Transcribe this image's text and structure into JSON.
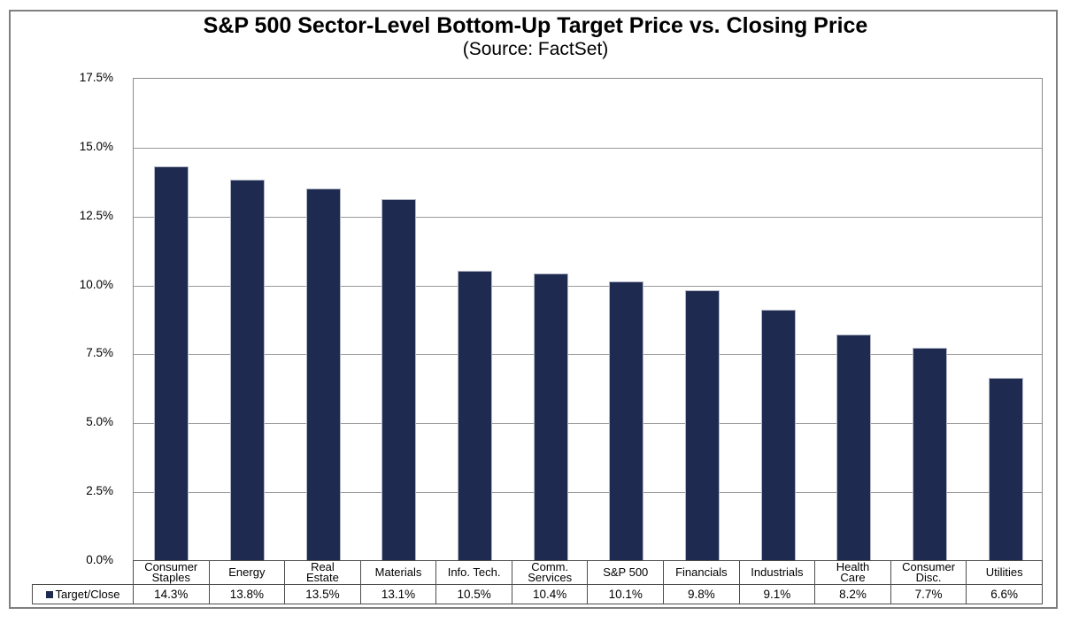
{
  "chart_data": {
    "type": "bar",
    "title": "S&P 500 Sector-Level Bottom-Up Target Price vs. Closing Price",
    "subtitle": "(Source: FactSet)",
    "series_label": "Target/Close",
    "categories": [
      "Consumer\nStaples",
      "Energy",
      "Real\nEstate",
      "Materials",
      "Info. Tech.",
      "Comm.\nServices",
      "S&P 500",
      "Financials",
      "Industrials",
      "Health\nCare",
      "Consumer\nDisc.",
      "Utilities"
    ],
    "values": [
      14.3,
      13.8,
      13.5,
      13.1,
      10.5,
      10.4,
      10.1,
      9.8,
      9.1,
      8.2,
      7.7,
      6.6
    ],
    "value_labels": [
      "14.3%",
      "13.8%",
      "13.5%",
      "13.1%",
      "10.5%",
      "10.4%",
      "10.1%",
      "9.8%",
      "9.1%",
      "8.2%",
      "7.7%",
      "6.6%"
    ],
    "xlabel": "",
    "ylabel": "",
    "ylim": [
      0,
      17.5
    ],
    "y_ticks": [
      {
        "value": 17.5,
        "label": "17.5%"
      },
      {
        "value": 15.0,
        "label": "15.0%"
      },
      {
        "value": 12.5,
        "label": "12.5%"
      },
      {
        "value": 10.0,
        "label": "10.0%"
      },
      {
        "value": 7.5,
        "label": "7.5%"
      },
      {
        "value": 5.0,
        "label": "5.0%"
      },
      {
        "value": 2.5,
        "label": "2.5%"
      },
      {
        "value": 0.0,
        "label": "0.0%"
      }
    ],
    "grid": "horizontal",
    "legend_position": "bottom-left-table",
    "colors": {
      "bar_fill": "#1e2a50",
      "bar_border": "#b3b8c6",
      "gridline": "#9a9a9a",
      "plot_border": "#8a8a8a",
      "table_border": "#4d4d4d",
      "frame_border": "#7f7f7f",
      "text": "#000000"
    }
  }
}
